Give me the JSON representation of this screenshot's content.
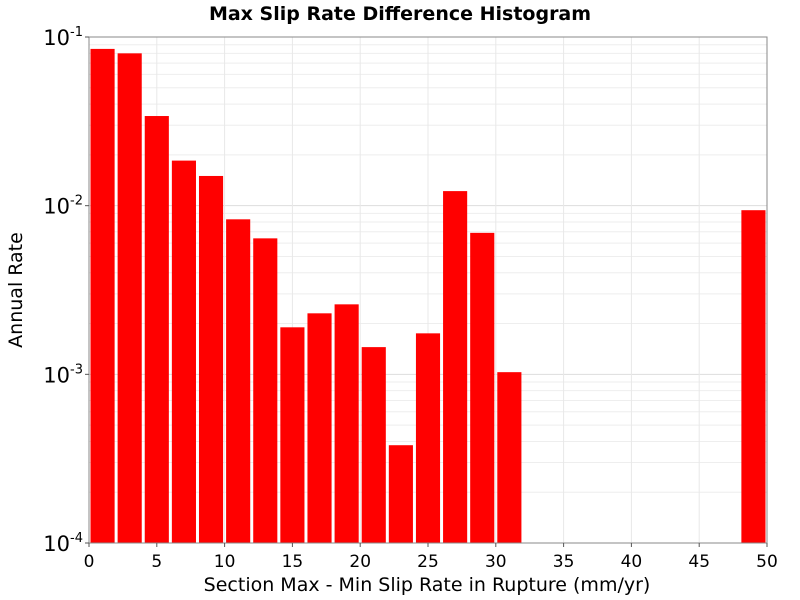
{
  "chart_data": {
    "type": "bar",
    "title": "Max Slip Rate Difference Histogram",
    "xlabel": "Section Max - Min Slip Rate in Rupture (mm/yr)",
    "ylabel": "Annual Rate",
    "xlim": [
      0,
      50
    ],
    "ylim": [
      0.0001,
      0.1
    ],
    "yscale": "log",
    "bin_width": 2,
    "grid": true,
    "bar_color": "#ff0000",
    "xticks": [
      {
        "value": 0,
        "label": "0"
      },
      {
        "value": 5,
        "label": "5"
      },
      {
        "value": 10,
        "label": "10"
      },
      {
        "value": 15,
        "label": "15"
      },
      {
        "value": 20,
        "label": "20"
      },
      {
        "value": 25,
        "label": "25"
      },
      {
        "value": 30,
        "label": "30"
      },
      {
        "value": 35,
        "label": "35"
      },
      {
        "value": 40,
        "label": "40"
      },
      {
        "value": 45,
        "label": "45"
      },
      {
        "value": 50,
        "label": "50"
      }
    ],
    "yticks": [
      {
        "value": 0.1,
        "base": "10",
        "exp": "-1"
      },
      {
        "value": 0.01,
        "base": "10",
        "exp": "-2"
      },
      {
        "value": 0.001,
        "base": "10",
        "exp": "-3"
      },
      {
        "value": 0.0001,
        "base": "10",
        "exp": "-4"
      }
    ],
    "bins": [
      {
        "x": 1,
        "value": 0.085
      },
      {
        "x": 3,
        "value": 0.08
      },
      {
        "x": 5,
        "value": 0.034
      },
      {
        "x": 7,
        "value": 0.0185
      },
      {
        "x": 9,
        "value": 0.015
      },
      {
        "x": 11,
        "value": 0.0083
      },
      {
        "x": 13,
        "value": 0.0064
      },
      {
        "x": 15,
        "value": 0.0019
      },
      {
        "x": 17,
        "value": 0.0023
      },
      {
        "x": 19,
        "value": 0.0026
      },
      {
        "x": 21,
        "value": 0.00145
      },
      {
        "x": 23,
        "value": 0.00038
      },
      {
        "x": 25,
        "value": 0.00175
      },
      {
        "x": 27,
        "value": 0.0122
      },
      {
        "x": 29,
        "value": 0.0069
      },
      {
        "x": 31,
        "value": 0.00103
      },
      {
        "x": 49,
        "value": 0.0094
      }
    ]
  }
}
